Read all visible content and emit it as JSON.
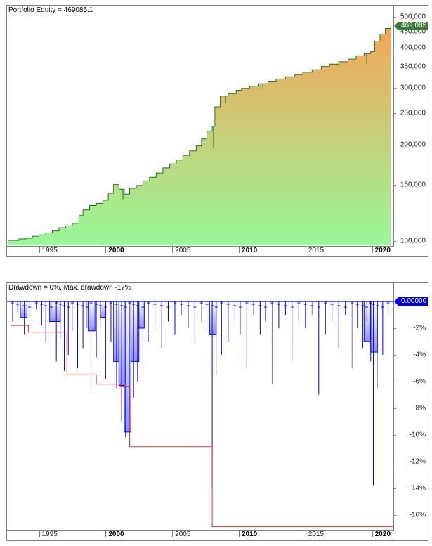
{
  "chart_data": [
    {
      "type": "area",
      "title": "Portfolio Equity = 469085.1",
      "series_name": "Portfolio Equity",
      "current_value_label": "469,085",
      "yscale": "log",
      "ylim": [
        97000,
        510000
      ],
      "ytick_labels": [
        "500,000",
        "450,000",
        "400,000",
        "350,000",
        "300,000",
        "250,000",
        "200,000",
        "150,000",
        "100,000"
      ],
      "ytick_values": [
        500000,
        450000,
        400000,
        350000,
        300000,
        250000,
        200000,
        150000,
        100000
      ],
      "xtick_labels": [
        "1995",
        "2000",
        "2005",
        "2010",
        "2015",
        "2020"
      ],
      "xtick_bold": [
        false,
        true,
        false,
        true,
        false,
        true
      ],
      "xlim": [
        1992.6,
        2021.6
      ],
      "fill_gradient": {
        "top": "#f5a55a",
        "bottom": "#98f898"
      },
      "line_color": "#2e6b2e",
      "label_bg": "#3b7a3b",
      "x": [
        1992.7,
        1993.5,
        1994.0,
        1994.5,
        1995.0,
        1995.5,
        1996.0,
        1996.5,
        1997.0,
        1997.5,
        1998.0,
        1998.3,
        1998.8,
        1999.3,
        1999.8,
        2000.2,
        2000.6,
        2001.0,
        2001.4,
        2001.8,
        2002.3,
        2002.8,
        2003.3,
        2003.8,
        2004.3,
        2004.8,
        2005.3,
        2005.8,
        2006.3,
        2006.8,
        2007.2,
        2007.6,
        2008.0,
        2008.2,
        2008.6,
        2009.2,
        2009.8,
        2010.2,
        2010.8,
        2011.5,
        2012.2,
        2012.8,
        2013.5,
        2014.2,
        2014.8,
        2015.5,
        2016.2,
        2016.8,
        2017.5,
        2018.2,
        2018.8,
        2019.4,
        2019.9,
        2020.2,
        2020.6,
        2021.0,
        2021.4
      ],
      "values": [
        100500,
        101500,
        102000,
        103500,
        104500,
        106000,
        107500,
        110000,
        111500,
        113500,
        120000,
        125000,
        129000,
        131000,
        134000,
        141000,
        150000,
        145000,
        140000,
        146000,
        149000,
        154000,
        158000,
        163000,
        169000,
        174000,
        179000,
        185000,
        191000,
        198000,
        208000,
        220000,
        228000,
        262000,
        283000,
        288000,
        295000,
        299000,
        304000,
        309000,
        315000,
        320000,
        325000,
        330000,
        336000,
        342000,
        350000,
        356000,
        362000,
        369000,
        378000,
        384000,
        390000,
        420000,
        442000,
        460000,
        469085
      ]
    },
    {
      "type": "area",
      "title": "Drawdown = 0%, Max. drawdown -17%",
      "series_name": "Drawdown",
      "current_value_label": "0.00000",
      "ylim": [
        -17.5,
        0.3
      ],
      "ytick_labels": [
        "-2%",
        "-4%",
        "-6%",
        "-8%",
        "-10%",
        "-12%",
        "-14%",
        "-16%"
      ],
      "ytick_values": [
        -2,
        -4,
        -6,
        -8,
        -10,
        -12,
        -14,
        -16
      ],
      "xtick_labels": [
        "1995",
        "2000",
        "2005",
        "2010",
        "2015",
        "2020"
      ],
      "xtick_bold": [
        false,
        true,
        false,
        true,
        false,
        true
      ],
      "xlim": [
        1992.6,
        2021.6
      ],
      "line_color": "#0000ee",
      "max_dd_line_color": "#e03030",
      "label_bg": "#0000ee",
      "max_drawdown_steps": {
        "x": [
          1992.9,
          1994.2,
          1997.1,
          1999.3,
          2001.1,
          2001.8,
          2008.0,
          2021.6
        ],
        "y": [
          -1.8,
          -2.3,
          -5.5,
          -6.2,
          -6.4,
          -10.9,
          -16.9,
          -16.9
        ]
      },
      "drawdown_spikes": {
        "x": [
          1993.0,
          1993.4,
          1993.9,
          1994.3,
          1994.8,
          1995.2,
          1995.5,
          1995.9,
          1996.3,
          1996.6,
          1996.9,
          1997.2,
          1997.5,
          1997.9,
          1998.3,
          1998.6,
          1998.9,
          1999.3,
          1999.6,
          2000.0,
          2000.4,
          2000.8,
          2001.2,
          2001.5,
          2001.8,
          2002.1,
          2002.4,
          2002.8,
          2003.2,
          2003.7,
          2004.2,
          2004.7,
          2005.2,
          2005.7,
          2006.2,
          2006.7,
          2007.2,
          2007.6,
          2008.0,
          2008.3,
          2008.7,
          2009.2,
          2009.7,
          2010.1,
          2010.6,
          2011.1,
          2011.6,
          2012.0,
          2012.5,
          2013.0,
          2013.5,
          2014.0,
          2014.5,
          2015.0,
          2015.5,
          2016.0,
          2016.5,
          2017.0,
          2017.5,
          2018.0,
          2018.5,
          2018.9,
          2019.3,
          2019.6,
          2019.9,
          2020.1,
          2020.4,
          2020.8,
          2021.2
        ],
        "y": [
          -1.5,
          -0.8,
          -2.5,
          -1.2,
          -0.6,
          -1.8,
          -3.0,
          -1.0,
          -4.5,
          -2.8,
          -5.2,
          -4.0,
          -2.2,
          -5.0,
          -3.5,
          -2.0,
          -6.5,
          -4.2,
          -2.0,
          -5.8,
          -3.0,
          -6.5,
          -9.0,
          -10.2,
          -8.5,
          -7.2,
          -6.0,
          -5.0,
          -3.0,
          -2.0,
          -3.5,
          -1.5,
          -2.5,
          -1.0,
          -2.0,
          -3.0,
          -1.5,
          -2.0,
          -14.0,
          -5.5,
          -4.0,
          -3.0,
          -1.5,
          -2.5,
          -5.0,
          -1.0,
          -2.5,
          -1.5,
          -6.2,
          -2.0,
          -1.0,
          -4.5,
          -1.5,
          -2.0,
          -1.0,
          -7.0,
          -2.5,
          -1.5,
          -3.5,
          -1.0,
          -5.0,
          -2.0,
          -3.5,
          -1.5,
          -4.5,
          -13.8,
          -6.5,
          -4.0,
          -0.8
        ]
      }
    }
  ]
}
